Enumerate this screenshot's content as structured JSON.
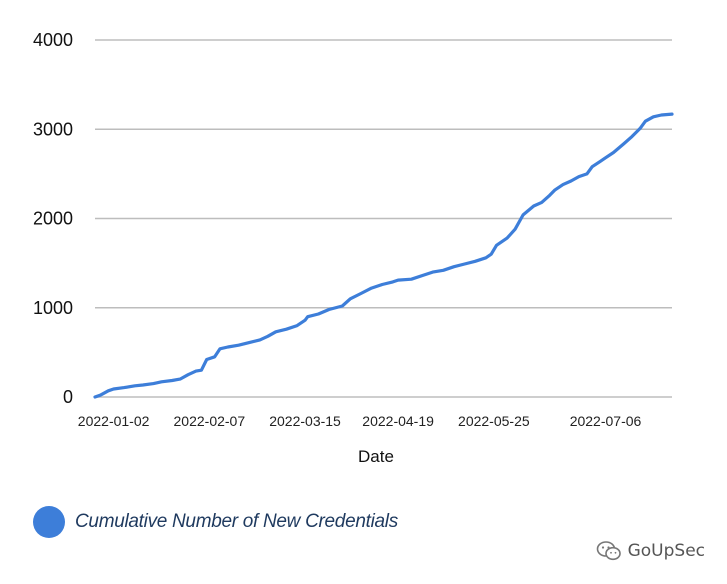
{
  "chart_data": {
    "type": "line",
    "xlabel": "Date",
    "ylabel": "",
    "ylim": [
      0,
      4000
    ],
    "y_ticks": [
      "0",
      "1000",
      "2000",
      "3000",
      "4000"
    ],
    "x_tick_labels": [
      "2022-01-02",
      "2022-02-07",
      "2022-03-15",
      "2022-04-19",
      "2022-05-25",
      "2022-07-06"
    ],
    "x_tick_dates": [
      "2022-01-02",
      "2022-02-07",
      "2022-03-15",
      "2022-04-19",
      "2022-05-25",
      "2022-07-06"
    ],
    "x_range": [
      "2021-12-26",
      "2022-07-31"
    ],
    "grid": true,
    "legend_position": "bottom-left",
    "series": [
      {
        "name": "Cumulative Number of New Credentials",
        "color": "#3d7ed9",
        "points": [
          [
            "2021-12-26",
            0
          ],
          [
            "2021-12-28",
            20
          ],
          [
            "2021-12-31",
            70
          ],
          [
            "2022-01-02",
            90
          ],
          [
            "2022-01-06",
            105
          ],
          [
            "2022-01-10",
            125
          ],
          [
            "2022-01-13",
            135
          ],
          [
            "2022-01-17",
            150
          ],
          [
            "2022-01-20",
            170
          ],
          [
            "2022-01-24",
            185
          ],
          [
            "2022-01-27",
            200
          ],
          [
            "2022-01-30",
            250
          ],
          [
            "2022-02-02",
            290
          ],
          [
            "2022-02-04",
            300
          ],
          [
            "2022-02-06",
            420
          ],
          [
            "2022-02-09",
            450
          ],
          [
            "2022-02-11",
            540
          ],
          [
            "2022-02-14",
            560
          ],
          [
            "2022-02-18",
            580
          ],
          [
            "2022-02-22",
            610
          ],
          [
            "2022-02-26",
            640
          ],
          [
            "2022-03-01",
            680
          ],
          [
            "2022-03-04",
            730
          ],
          [
            "2022-03-08",
            760
          ],
          [
            "2022-03-12",
            800
          ],
          [
            "2022-03-15",
            860
          ],
          [
            "2022-03-16",
            900
          ],
          [
            "2022-03-20",
            930
          ],
          [
            "2022-03-24",
            980
          ],
          [
            "2022-03-29",
            1020
          ],
          [
            "2022-04-01",
            1100
          ],
          [
            "2022-04-05",
            1160
          ],
          [
            "2022-04-09",
            1220
          ],
          [
            "2022-04-13",
            1260
          ],
          [
            "2022-04-17",
            1290
          ],
          [
            "2022-04-19",
            1310
          ],
          [
            "2022-04-24",
            1320
          ],
          [
            "2022-04-28",
            1360
          ],
          [
            "2022-05-02",
            1400
          ],
          [
            "2022-05-06",
            1420
          ],
          [
            "2022-05-10",
            1460
          ],
          [
            "2022-05-14",
            1490
          ],
          [
            "2022-05-18",
            1520
          ],
          [
            "2022-05-22",
            1560
          ],
          [
            "2022-05-24",
            1600
          ],
          [
            "2022-05-26",
            1700
          ],
          [
            "2022-05-30",
            1780
          ],
          [
            "2022-06-02",
            1880
          ],
          [
            "2022-06-05",
            2040
          ],
          [
            "2022-06-09",
            2140
          ],
          [
            "2022-06-12",
            2180
          ],
          [
            "2022-06-15",
            2260
          ],
          [
            "2022-06-17",
            2320
          ],
          [
            "2022-06-20",
            2380
          ],
          [
            "2022-06-23",
            2420
          ],
          [
            "2022-06-26",
            2470
          ],
          [
            "2022-06-29",
            2500
          ],
          [
            "2022-07-01",
            2580
          ],
          [
            "2022-07-04",
            2640
          ],
          [
            "2022-07-06",
            2680
          ],
          [
            "2022-07-09",
            2740
          ],
          [
            "2022-07-13",
            2840
          ],
          [
            "2022-07-16",
            2920
          ],
          [
            "2022-07-19",
            3010
          ],
          [
            "2022-07-21",
            3090
          ],
          [
            "2022-07-24",
            3140
          ],
          [
            "2022-07-27",
            3160
          ],
          [
            "2022-07-31",
            3170
          ]
        ]
      }
    ]
  },
  "legend": {
    "label": "Cumulative Number of New Credentials",
    "color": "#3d7ed9"
  },
  "watermark": {
    "text": "GoUpSec",
    "icon": "wechat-icon"
  }
}
